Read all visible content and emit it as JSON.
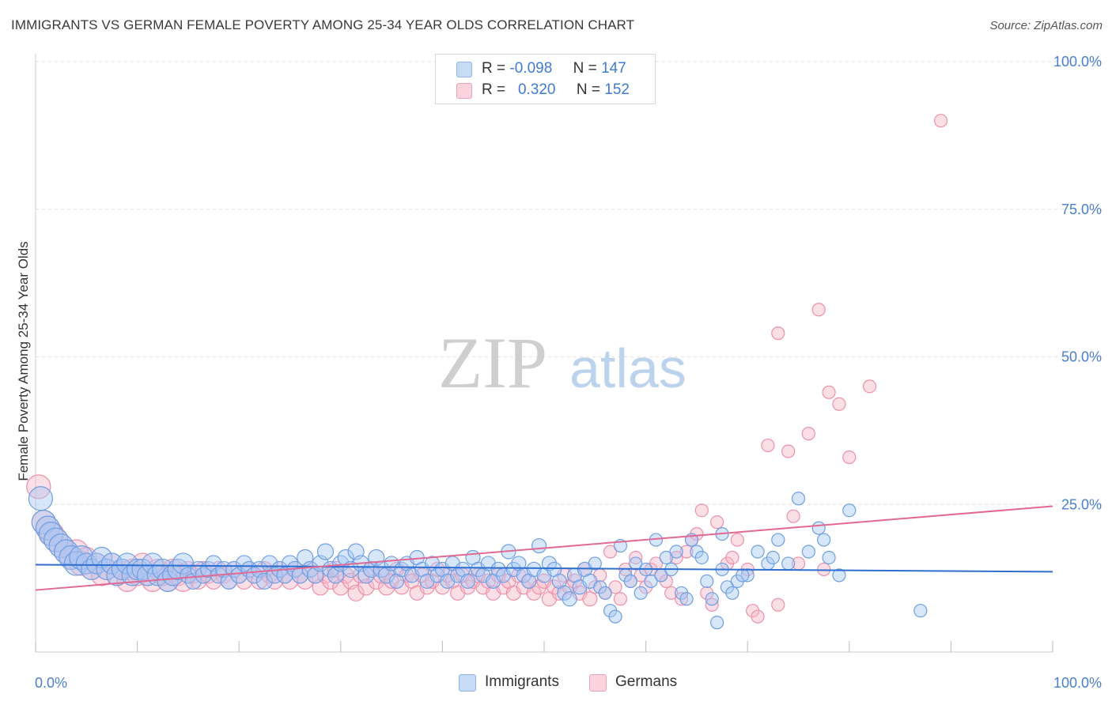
{
  "title": "IMMIGRANTS VS GERMAN FEMALE POVERTY AMONG 25-34 YEAR OLDS CORRELATION CHART",
  "source": "Source: ZipAtlas.com",
  "watermark": {
    "zip": "ZIP",
    "atlas": "atlas"
  },
  "legend": {
    "rows": [
      {
        "r_label": "R =",
        "r_value": "-0.098",
        "n_label": "N =",
        "n_value": "147",
        "color": "#a9c8f3"
      },
      {
        "r_label": "R =",
        "r_value": "0.320",
        "n_label": "N =",
        "n_value": "152",
        "color": "#f7b9ca"
      }
    ]
  },
  "bottom_legend": [
    {
      "label": "Immigrants",
      "color": "#a9c8f3"
    },
    {
      "label": "Germans",
      "color": "#f7b9ca"
    }
  ],
  "chart_data": {
    "type": "scatter",
    "ylabel": "Female Poverty Among 25-34 Year Olds",
    "xlabel": "",
    "xlim": [
      0,
      100
    ],
    "ylim": [
      0,
      100
    ],
    "x_tick_labels": [
      "0.0%",
      "100.0%"
    ],
    "y_tick_labels": [
      "25.0%",
      "50.0%",
      "75.0%",
      "100.0%"
    ],
    "y_ticks": [
      25,
      50,
      75,
      100
    ],
    "grid": true,
    "colors": {
      "immigrants": "#6d9fe3",
      "germans": "#ee8faa",
      "immigrants_line": "#2e6fcf",
      "germans_line": "#e06a93"
    },
    "series": [
      {
        "name": "Immigrants",
        "trend": {
          "x": [
            0,
            100
          ],
          "y": [
            14.8,
            13.6
          ]
        },
        "points": [
          [
            0.5,
            26
          ],
          [
            0.8,
            22
          ],
          [
            1.2,
            21
          ],
          [
            1.5,
            20
          ],
          [
            2,
            19
          ],
          [
            2.5,
            18
          ],
          [
            3,
            17
          ],
          [
            3.5,
            16
          ],
          [
            4,
            15
          ],
          [
            4.5,
            16
          ],
          [
            5,
            15
          ],
          [
            5.5,
            14
          ],
          [
            6,
            15
          ],
          [
            6.5,
            16
          ],
          [
            7,
            14
          ],
          [
            7.5,
            15
          ],
          [
            8,
            13
          ],
          [
            8.5,
            14
          ],
          [
            9,
            15
          ],
          [
            9.5,
            13
          ],
          [
            10,
            14
          ],
          [
            10.5,
            14
          ],
          [
            11,
            13
          ],
          [
            11.5,
            15
          ],
          [
            12,
            13
          ],
          [
            12.5,
            14
          ],
          [
            13,
            12
          ],
          [
            13.5,
            13
          ],
          [
            14,
            14
          ],
          [
            14.5,
            15
          ],
          [
            15,
            13
          ],
          [
            15.5,
            12
          ],
          [
            16,
            14
          ],
          [
            16.5,
            13
          ],
          [
            17,
            14
          ],
          [
            17.5,
            15
          ],
          [
            18,
            13
          ],
          [
            18.5,
            14
          ],
          [
            19,
            12
          ],
          [
            19.5,
            14
          ],
          [
            20,
            13
          ],
          [
            20.5,
            15
          ],
          [
            21,
            14
          ],
          [
            21.5,
            13
          ],
          [
            22,
            14
          ],
          [
            22.5,
            12
          ],
          [
            23,
            15
          ],
          [
            23.5,
            13
          ],
          [
            24,
            14
          ],
          [
            24.5,
            13
          ],
          [
            25,
            15
          ],
          [
            25.5,
            14
          ],
          [
            26,
            13
          ],
          [
            26.5,
            16
          ],
          [
            27,
            14
          ],
          [
            27.5,
            13
          ],
          [
            28,
            15
          ],
          [
            28.5,
            17
          ],
          [
            29,
            14
          ],
          [
            29.5,
            13
          ],
          [
            30,
            15
          ],
          [
            30.5,
            16
          ],
          [
            31,
            14
          ],
          [
            31.5,
            17
          ],
          [
            32,
            15
          ],
          [
            32.5,
            13
          ],
          [
            33,
            14
          ],
          [
            33.5,
            16
          ],
          [
            34,
            14
          ],
          [
            34.5,
            13
          ],
          [
            35,
            15
          ],
          [
            35.5,
            12
          ],
          [
            36,
            14
          ],
          [
            36.5,
            15
          ],
          [
            37,
            13
          ],
          [
            37.5,
            16
          ],
          [
            38,
            14
          ],
          [
            38.5,
            12
          ],
          [
            39,
            15
          ],
          [
            39.5,
            13
          ],
          [
            40,
            14
          ],
          [
            40.5,
            12
          ],
          [
            41,
            15
          ],
          [
            41.5,
            13
          ],
          [
            42,
            14
          ],
          [
            42.5,
            12
          ],
          [
            43,
            16
          ],
          [
            43.5,
            14
          ],
          [
            44,
            13
          ],
          [
            44.5,
            15
          ],
          [
            45,
            12
          ],
          [
            45.5,
            14
          ],
          [
            46,
            13
          ],
          [
            46.5,
            17
          ],
          [
            47,
            14
          ],
          [
            47.5,
            15
          ],
          [
            48,
            13
          ],
          [
            48.5,
            12
          ],
          [
            49,
            14
          ],
          [
            49.5,
            18
          ],
          [
            50,
            13
          ],
          [
            50.5,
            15
          ],
          [
            51,
            14
          ],
          [
            51.5,
            12
          ],
          [
            52,
            10
          ],
          [
            52.5,
            9
          ],
          [
            53,
            13
          ],
          [
            53.5,
            11
          ],
          [
            54,
            14
          ],
          [
            54.5,
            12
          ],
          [
            55,
            15
          ],
          [
            55.5,
            11
          ],
          [
            56,
            10
          ],
          [
            56.5,
            7
          ],
          [
            57,
            6
          ],
          [
            57.5,
            18
          ],
          [
            58,
            13
          ],
          [
            58.5,
            12
          ],
          [
            59,
            15
          ],
          [
            59.5,
            10
          ],
          [
            60,
            14
          ],
          [
            60.5,
            12
          ],
          [
            61,
            19
          ],
          [
            61.5,
            13
          ],
          [
            62,
            16
          ],
          [
            62.5,
            14
          ],
          [
            63,
            17
          ],
          [
            63.5,
            10
          ],
          [
            64,
            9
          ],
          [
            64.5,
            19
          ],
          [
            65,
            17
          ],
          [
            65.5,
            16
          ],
          [
            66,
            12
          ],
          [
            66.5,
            9
          ],
          [
            67,
            5
          ],
          [
            67.5,
            14
          ],
          [
            68,
            11
          ],
          [
            68.5,
            10
          ],
          [
            69,
            12
          ],
          [
            70,
            13
          ],
          [
            71,
            17
          ],
          [
            72,
            15
          ],
          [
            72.5,
            16
          ],
          [
            73,
            19
          ],
          [
            74,
            15
          ],
          [
            75,
            26
          ],
          [
            76,
            17
          ],
          [
            77,
            21
          ],
          [
            77.5,
            19
          ],
          [
            78,
            16
          ],
          [
            79,
            13
          ],
          [
            80,
            24
          ],
          [
            87,
            7
          ],
          [
            67.5,
            20
          ],
          [
            69.5,
            13
          ]
        ]
      },
      {
        "name": "Germans",
        "trend": {
          "x": [
            0,
            100
          ],
          "y": [
            10.5,
            24.7
          ]
        },
        "points": [
          [
            0.3,
            28
          ],
          [
            0.8,
            22
          ],
          [
            1.2,
            21
          ],
          [
            1.6,
            20
          ],
          [
            2,
            19
          ],
          [
            2.5,
            18
          ],
          [
            3,
            17
          ],
          [
            3.5,
            16
          ],
          [
            4,
            17
          ],
          [
            4.5,
            15
          ],
          [
            5,
            16
          ],
          [
            5.5,
            14
          ],
          [
            6,
            15
          ],
          [
            6.5,
            13
          ],
          [
            7,
            14
          ],
          [
            7.5,
            15
          ],
          [
            8,
            13
          ],
          [
            8.5,
            14
          ],
          [
            9,
            12
          ],
          [
            9.5,
            14
          ],
          [
            10,
            13
          ],
          [
            10.5,
            15
          ],
          [
            11,
            13
          ],
          [
            11.5,
            12
          ],
          [
            12,
            14
          ],
          [
            12.5,
            13
          ],
          [
            13,
            12
          ],
          [
            13.5,
            14
          ],
          [
            14,
            13
          ],
          [
            14.5,
            12
          ],
          [
            15,
            14
          ],
          [
            15.5,
            13
          ],
          [
            16,
            12
          ],
          [
            16.5,
            14
          ],
          [
            17,
            13
          ],
          [
            17.5,
            12
          ],
          [
            18,
            14
          ],
          [
            18.5,
            13
          ],
          [
            19,
            12
          ],
          [
            19.5,
            14
          ],
          [
            20,
            13
          ],
          [
            20.5,
            12
          ],
          [
            21,
            14
          ],
          [
            21.5,
            13
          ],
          [
            22,
            12
          ],
          [
            22.5,
            14
          ],
          [
            23,
            13
          ],
          [
            23.5,
            12
          ],
          [
            24,
            14
          ],
          [
            24.5,
            13
          ],
          [
            25,
            12
          ],
          [
            25.5,
            14
          ],
          [
            26,
            13
          ],
          [
            26.5,
            12
          ],
          [
            27,
            14
          ],
          [
            27.5,
            13
          ],
          [
            28,
            11
          ],
          [
            28.5,
            13
          ],
          [
            29,
            12
          ],
          [
            29.5,
            14
          ],
          [
            30,
            11
          ],
          [
            30.5,
            13
          ],
          [
            31,
            12
          ],
          [
            31.5,
            10
          ],
          [
            32,
            13
          ],
          [
            32.5,
            11
          ],
          [
            33,
            14
          ],
          [
            33.5,
            12
          ],
          [
            34,
            13
          ],
          [
            34.5,
            11
          ],
          [
            35,
            12
          ],
          [
            35.5,
            14
          ],
          [
            36,
            11
          ],
          [
            36.5,
            13
          ],
          [
            37,
            12
          ],
          [
            37.5,
            10
          ],
          [
            38,
            13
          ],
          [
            38.5,
            11
          ],
          [
            39,
            12
          ],
          [
            39.5,
            14
          ],
          [
            40,
            11
          ],
          [
            40.5,
            13
          ],
          [
            41,
            12
          ],
          [
            41.5,
            10
          ],
          [
            42,
            13
          ],
          [
            42.5,
            11
          ],
          [
            43,
            12
          ],
          [
            43.5,
            13
          ],
          [
            44,
            11
          ],
          [
            44.5,
            12
          ],
          [
            45,
            10
          ],
          [
            45.5,
            13
          ],
          [
            46,
            11
          ],
          [
            46.5,
            12
          ],
          [
            47,
            10
          ],
          [
            47.5,
            13
          ],
          [
            48,
            11
          ],
          [
            48.5,
            12
          ],
          [
            49,
            10
          ],
          [
            49.5,
            11
          ],
          [
            50,
            12
          ],
          [
            50.5,
            9
          ],
          [
            51,
            11
          ],
          [
            51.5,
            10
          ],
          [
            52,
            13
          ],
          [
            52.5,
            11
          ],
          [
            53,
            12
          ],
          [
            53.5,
            10
          ],
          [
            54,
            14
          ],
          [
            54.5,
            9
          ],
          [
            55,
            11
          ],
          [
            55.5,
            13
          ],
          [
            56,
            10
          ],
          [
            56.5,
            17
          ],
          [
            57,
            11
          ],
          [
            57.5,
            9
          ],
          [
            58,
            14
          ],
          [
            58.5,
            12
          ],
          [
            59,
            16
          ],
          [
            59.5,
            13
          ],
          [
            60,
            11
          ],
          [
            60.5,
            14
          ],
          [
            61,
            15
          ],
          [
            61.5,
            13
          ],
          [
            62,
            12
          ],
          [
            62.5,
            10
          ],
          [
            63,
            16
          ],
          [
            63.5,
            9
          ],
          [
            64,
            17
          ],
          [
            64.5,
            19
          ],
          [
            65,
            20
          ],
          [
            65.5,
            24
          ],
          [
            66,
            10
          ],
          [
            66.5,
            8
          ],
          [
            67,
            22
          ],
          [
            68,
            15
          ],
          [
            68.5,
            16
          ],
          [
            69,
            19
          ],
          [
            70,
            14
          ],
          [
            70.5,
            7
          ],
          [
            71,
            6
          ],
          [
            72,
            35
          ],
          [
            73,
            8
          ],
          [
            74,
            34
          ],
          [
            75,
            15
          ],
          [
            76,
            37
          ],
          [
            77,
            58
          ],
          [
            78,
            44
          ],
          [
            79,
            42
          ],
          [
            80,
            33
          ],
          [
            82,
            45
          ],
          [
            89,
            90
          ],
          [
            73,
            54
          ],
          [
            74.5,
            23
          ],
          [
            77.5,
            14
          ]
        ]
      }
    ]
  }
}
